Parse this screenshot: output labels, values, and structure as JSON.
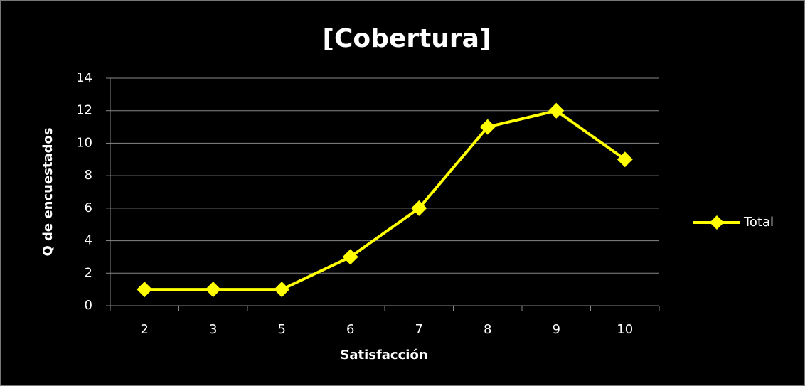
{
  "chart_data": {
    "type": "line",
    "title": "[Cobertura]",
    "x_label": "Satisfacción",
    "y_label": "Q de encuestados",
    "categories": [
      "2",
      "3",
      "5",
      "6",
      "7",
      "8",
      "9",
      "10"
    ],
    "series": [
      {
        "name": "Total",
        "color": "#ffff00",
        "values": [
          1,
          1,
          1,
          3,
          6,
          11,
          12,
          9
        ]
      }
    ],
    "ylim": [
      0,
      14
    ],
    "yticks": [
      0,
      2,
      4,
      6,
      8,
      10,
      12,
      14
    ],
    "grid": true,
    "legend": "right"
  }
}
